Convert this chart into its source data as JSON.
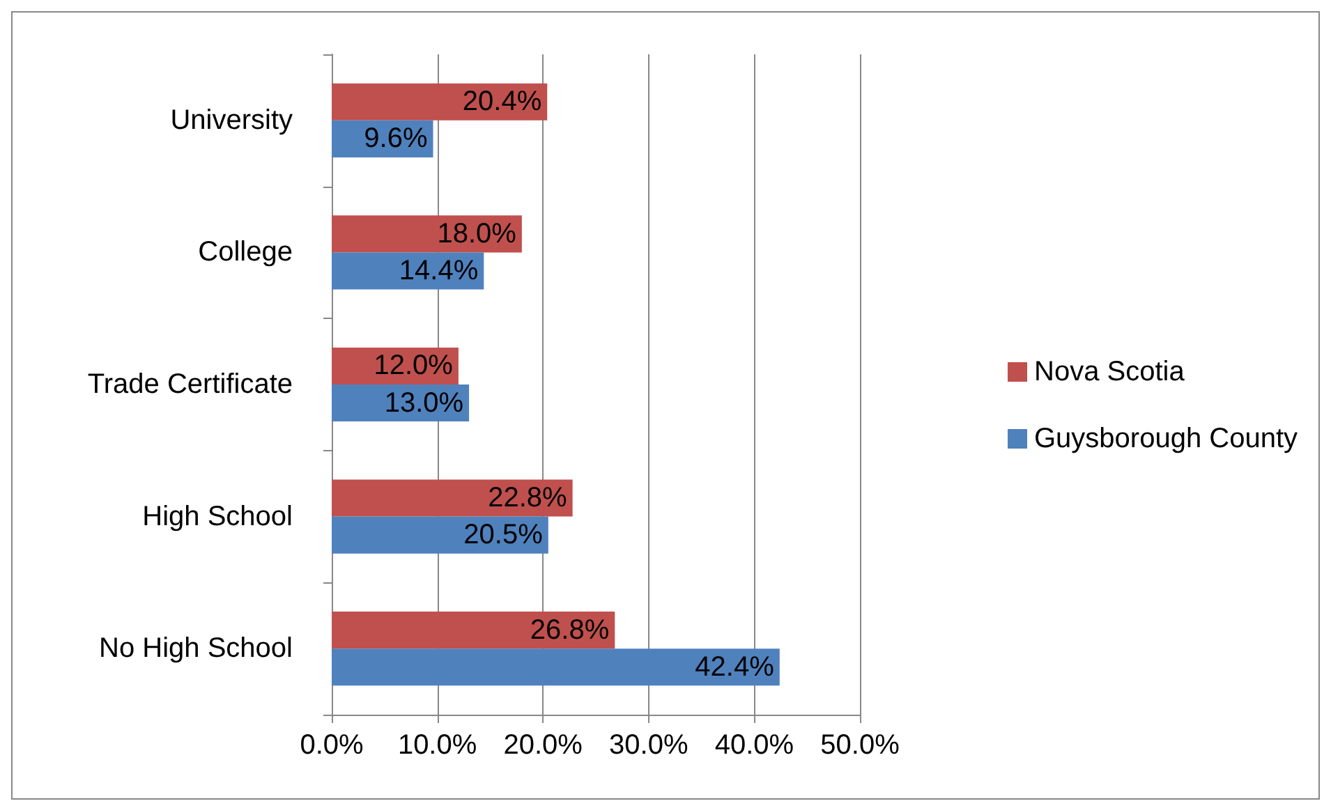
{
  "chart_data": {
    "type": "bar",
    "orientation": "horizontal",
    "categories": [
      "University",
      "College",
      "Trade Certificate",
      "High School",
      "No High School"
    ],
    "series": [
      {
        "name": "Nova Scotia",
        "color": "#c0504d",
        "values": [
          20.4,
          18.0,
          12.0,
          22.8,
          26.8
        ],
        "value_labels": [
          "20.4%",
          "18.0%",
          "12.0%",
          "22.8%",
          "26.8%"
        ]
      },
      {
        "name": "Guysborough County",
        "color": "#4f81bd",
        "values": [
          9.6,
          14.4,
          13.0,
          20.5,
          42.4
        ],
        "value_labels": [
          "9.6%",
          "14.4%",
          "13.0%",
          "20.5%",
          "42.4%"
        ]
      }
    ],
    "xlim": [
      0,
      50
    ],
    "xticks": [
      {
        "value": 0,
        "label": "0.0%"
      },
      {
        "value": 10,
        "label": "10.0%"
      },
      {
        "value": 20,
        "label": "20.0%"
      },
      {
        "value": 30,
        "label": "30.0%"
      },
      {
        "value": 40,
        "label": "40.0%"
      },
      {
        "value": 50,
        "label": "50.0%"
      }
    ],
    "grid": "x",
    "legend": "right"
  }
}
